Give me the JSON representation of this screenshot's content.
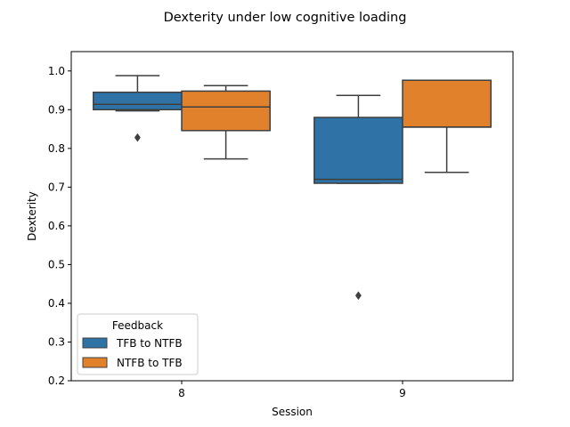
{
  "chart_data": {
    "type": "box",
    "title": "Dexterity under low cognitive loading",
    "xlabel": "Session",
    "ylabel": "Dexterity",
    "categories": [
      "8",
      "9"
    ],
    "ylim": [
      0.2,
      1.05
    ],
    "yticks": [
      "0.2",
      "0.3",
      "0.4",
      "0.5",
      "0.6",
      "0.7",
      "0.8",
      "0.9",
      "1.0"
    ],
    "grid": false,
    "legend": {
      "title": "Feedback",
      "placement": "lower-left",
      "entries": [
        "TFB to NTFB",
        "NTFB to TFB"
      ]
    },
    "series": [
      {
        "name": "TFB to NTFB",
        "color": "#2f73a6",
        "boxes": [
          {
            "category": "8",
            "whisker_low": 0.897,
            "q1": 0.9,
            "median": 0.914,
            "q3": 0.945,
            "whisker_high": 0.988,
            "outliers": [
              0.828
            ]
          },
          {
            "category": "9",
            "whisker_low": 0.71,
            "q1": 0.71,
            "median": 0.72,
            "q3": 0.88,
            "whisker_high": 0.937,
            "outliers": [
              0.42
            ]
          }
        ]
      },
      {
        "name": "NTFB to TFB",
        "color": "#e1812c",
        "boxes": [
          {
            "category": "8",
            "whisker_low": 0.773,
            "q1": 0.846,
            "median": 0.907,
            "q3": 0.948,
            "whisker_high": 0.962,
            "outliers": []
          },
          {
            "category": "9",
            "whisker_low": 0.738,
            "q1": 0.855,
            "median": 0.855,
            "q3": 0.976,
            "whisker_high": 0.976,
            "outliers": []
          }
        ]
      }
    ]
  }
}
